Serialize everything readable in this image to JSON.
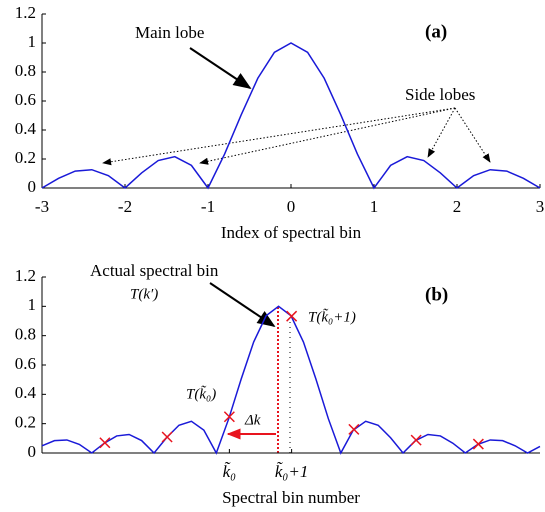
{
  "chart_data": [
    {
      "type": "line",
      "xlabel": "Index of spectral bin",
      "annotations": [
        "Main lobe",
        "Side lobes",
        "(a)"
      ],
      "x": [
        -3,
        -2.8,
        -2.6,
        -2.4,
        -2.2,
        -2,
        -1.8,
        -1.6,
        -1.4,
        -1.2,
        -1,
        -0.8,
        -0.6,
        -0.4,
        -0.2,
        0,
        0.2,
        0.4,
        0.6,
        0.8,
        1,
        1.2,
        1.4,
        1.6,
        1.8,
        2,
        2.2,
        2.4,
        2.6,
        2.8,
        3
      ],
      "values": [
        0,
        0.0668,
        0.1164,
        0.1261,
        0.085,
        0,
        0.1039,
        0.1892,
        0.2162,
        0.1559,
        0,
        0.2339,
        0.5046,
        0.7568,
        0.9355,
        1,
        0.9355,
        0.7568,
        0.5046,
        0.2339,
        0,
        0.1559,
        0.2162,
        0.1892,
        0.1039,
        0,
        0.085,
        0.1261,
        0.1164,
        0.0668,
        0
      ],
      "color": "#1a1ad8",
      "xlim": [
        -3,
        3
      ],
      "xticks": [
        -3,
        -2,
        -1,
        0,
        1,
        2,
        3
      ],
      "ylim": [
        0,
        1.2
      ],
      "yticks": [
        0,
        0.2,
        0.4,
        0.6,
        0.8,
        1,
        1.2
      ]
    },
    {
      "type": "line",
      "xlabel": "Spectral bin number",
      "annotations": [
        "Actual spectral bin",
        "T(k′)",
        "T(k̃₀+1)",
        "T(k̃₀)",
        "Δk",
        "(b)"
      ],
      "x": [
        -3.8,
        -3.6,
        -3.4,
        -3.2,
        -3,
        -2.8,
        -2.6,
        -2.4,
        -2.2,
        -2,
        -1.8,
        -1.6,
        -1.4,
        -1.2,
        -1,
        -0.8,
        -0.6,
        -0.4,
        -0.2,
        0,
        0.2,
        0.4,
        0.6,
        0.8,
        1,
        1.2,
        1.4,
        1.6,
        1.8,
        2,
        2.2,
        2.4,
        2.6,
        2.8,
        3,
        3.2,
        3.4,
        3.6,
        3.8,
        4,
        4.2
      ],
      "values": [
        0.0492,
        0.0841,
        0.089,
        0.0585,
        0,
        0.0668,
        0.1164,
        0.1261,
        0.085,
        0,
        0.1039,
        0.1892,
        0.2162,
        0.1559,
        0,
        0.2339,
        0.5046,
        0.7568,
        0.9355,
        1,
        0.9355,
        0.7568,
        0.5046,
        0.2339,
        0,
        0.1559,
        0.2162,
        0.1892,
        0.1039,
        0,
        0.085,
        0.1261,
        0.1164,
        0.0668,
        0,
        0.0585,
        0.089,
        0.0841,
        0.0492,
        0,
        0.0445
      ],
      "color": "#1a1ad8",
      "markers": {
        "x": [
          -2.79,
          -1.79,
          -0.79,
          0.21,
          1.21,
          2.21,
          3.21
        ],
        "values": [
          0.07,
          0.109,
          0.247,
          0.933,
          0.161,
          0.088,
          0.061
        ],
        "color": "#e8141e"
      },
      "xlim": [
        -3.8,
        4.2
      ],
      "xticks": [
        {
          "value": -0.79,
          "label": "k̃₀"
        },
        {
          "value": 0.21,
          "label": "k̃₀+1"
        }
      ],
      "ylim": [
        0,
        1.2
      ],
      "yticks": [
        0,
        0.2,
        0.4,
        0.6,
        0.8,
        1,
        1.2
      ]
    }
  ]
}
